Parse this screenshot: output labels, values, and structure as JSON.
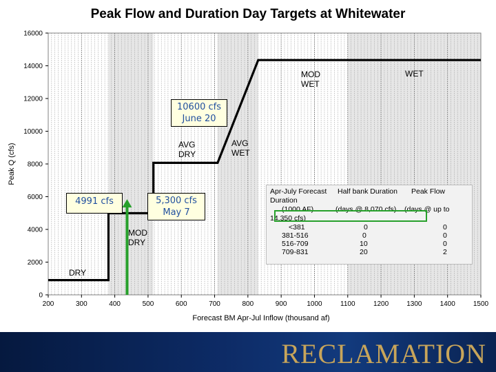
{
  "page": {
    "title": "Peak Flow and Duration Day Targets at Whitewater"
  },
  "chart_data": {
    "type": "line",
    "title": "Peak Flow and Duration Day Targets at Whitewater",
    "xlabel": "Forecast BM Apr-Jul Inflow (thousand af)",
    "ylabel": "Peak Q (cfs)",
    "xlim": [
      200,
      1500
    ],
    "ylim": [
      0,
      16000
    ],
    "x_ticks": [
      200,
      300,
      400,
      500,
      600,
      700,
      800,
      900,
      1000,
      1100,
      1200,
      1300,
      1400,
      1500
    ],
    "y_ticks": [
      0,
      2000,
      4000,
      6000,
      8000,
      10000,
      12000,
      14000,
      16000
    ],
    "grid": "vertical minor gridlines",
    "series": [
      {
        "x": [
          200,
          381,
          381,
          516,
          516,
          709,
          709,
          831,
          831,
          1500
        ],
        "y": [
          900,
          900,
          4991,
          4991,
          8070,
          8070,
          8070,
          14350,
          14350,
          14350
        ]
      }
    ],
    "shaded_bands": [
      [
        381,
        516
      ],
      [
        709,
        831
      ],
      [
        1100,
        1500
      ]
    ],
    "category_labels": [
      {
        "text": "DRY",
        "x": 260,
        "y": 1400
      },
      {
        "text": "MOD\nDRY",
        "x": 440,
        "y": 3800
      },
      {
        "text": "AVG\nDRY",
        "x": 625,
        "y": 9000
      },
      {
        "text": "AVG\nWET",
        "x": 760,
        "y": 9300
      },
      {
        "text": "MOD\nWET",
        "x": 1000,
        "y": 13200
      },
      {
        "text": "WET",
        "x": 1310,
        "y": 13700
      }
    ],
    "callouts": [
      {
        "text": "10600 cfs\nJune 20",
        "x": 655,
        "y": 11200
      },
      {
        "text": "4991 cfs",
        "x": 335,
        "y": 5600
      },
      {
        "text": "5,300 cfs\nMay 7",
        "x": 580,
        "y": 5500
      }
    ],
    "forecast_arrow": {
      "x": 437,
      "y_from": 0,
      "y_to": 5850,
      "color": "#27a02b"
    },
    "table": {
      "headers": [
        "Apr-July Forecast",
        "Half bank Duration",
        "Peak Flow"
      ],
      "subheaders": [
        "Duration",
        "(1000 AF)",
        "(days @ 8,070 cfs)",
        "(days @ up to",
        "14,350 cfs)"
      ],
      "rows": [
        [
          "<381",
          "0",
          "0"
        ],
        [
          "381-516",
          "0",
          "0"
        ],
        [
          "516-709",
          "10",
          "0"
        ],
        [
          "709-831",
          "20",
          "2"
        ]
      ]
    }
  },
  "footer": {
    "brand": "RECLAMATION"
  },
  "colors": {
    "footer_bg": "#0d2b66",
    "brand": "#c8a55a",
    "callout_text": "#1f4e9e",
    "callout_bg": "#ffffe0",
    "arrow": "#27a02b"
  }
}
